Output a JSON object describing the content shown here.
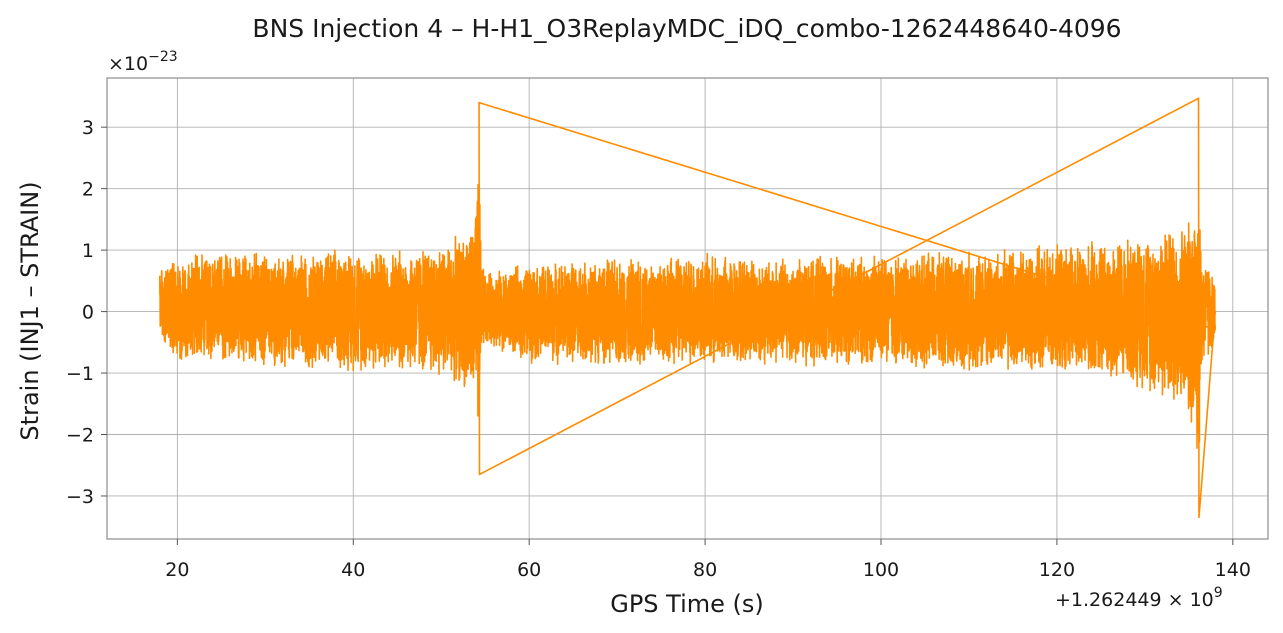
{
  "chart_data": {
    "type": "line",
    "title": "BNS Injection 4 – H-H1_O3ReplayMDC_iDQ_combo-1262448640-4096",
    "xlabel": "GPS Time (s)",
    "ylabel": "Strain (INJ1 – STRAIN)",
    "x_offset_label": "+1.262449 × 10",
    "x_offset_exponent": "9",
    "y_scale_label": "×10",
    "y_scale_exponent": "−23",
    "xlim": [
      12,
      144
    ],
    "ylim": [
      -3.7,
      3.8
    ],
    "x_ticks": [
      20,
      40,
      60,
      80,
      100,
      120,
      140
    ],
    "x_tick_labels": [
      "20",
      "40",
      "60",
      "80",
      "100",
      "120",
      "140"
    ],
    "y_ticks": [
      -3,
      -2,
      -1,
      0,
      1,
      2,
      3
    ],
    "y_tick_labels": [
      "−3",
      "−2",
      "−1",
      "0",
      "1",
      "2",
      "3"
    ],
    "grid": true,
    "line_color": "#ff8c00",
    "series": [
      {
        "x_start": 18,
        "x_end": 138,
        "envelope": {
          "x": [
            18,
            20,
            30,
            40,
            46,
            50,
            52,
            53.5,
            54.1,
            54.3,
            54.5,
            55,
            60,
            70,
            80,
            90,
            100,
            110,
            120,
            126,
            130,
            133,
            135,
            135.8,
            136.1,
            136.3,
            136.6,
            137.2,
            138
          ],
          "upper": [
            0.75,
            0.95,
            1.0,
            1.05,
            1.05,
            1.15,
            1.25,
            1.45,
            2.0,
            3.4,
            1.0,
            0.65,
            0.8,
            0.9,
            0.95,
            0.9,
            0.95,
            1.0,
            1.1,
            1.2,
            1.3,
            1.45,
            1.55,
            2.1,
            3.47,
            1.4,
            0.9,
            0.85,
            0.45
          ],
          "lower": [
            -0.45,
            -0.85,
            -0.9,
            -1.0,
            -1.0,
            -1.1,
            -1.2,
            -1.5,
            -1.9,
            -2.65,
            -0.75,
            -0.55,
            -0.85,
            -0.9,
            -0.9,
            -0.9,
            -0.9,
            -1.0,
            -1.05,
            -1.15,
            -1.3,
            -1.55,
            -1.75,
            -2.3,
            -3.35,
            -1.45,
            -0.9,
            -0.85,
            -0.45
          ]
        }
      }
    ]
  }
}
